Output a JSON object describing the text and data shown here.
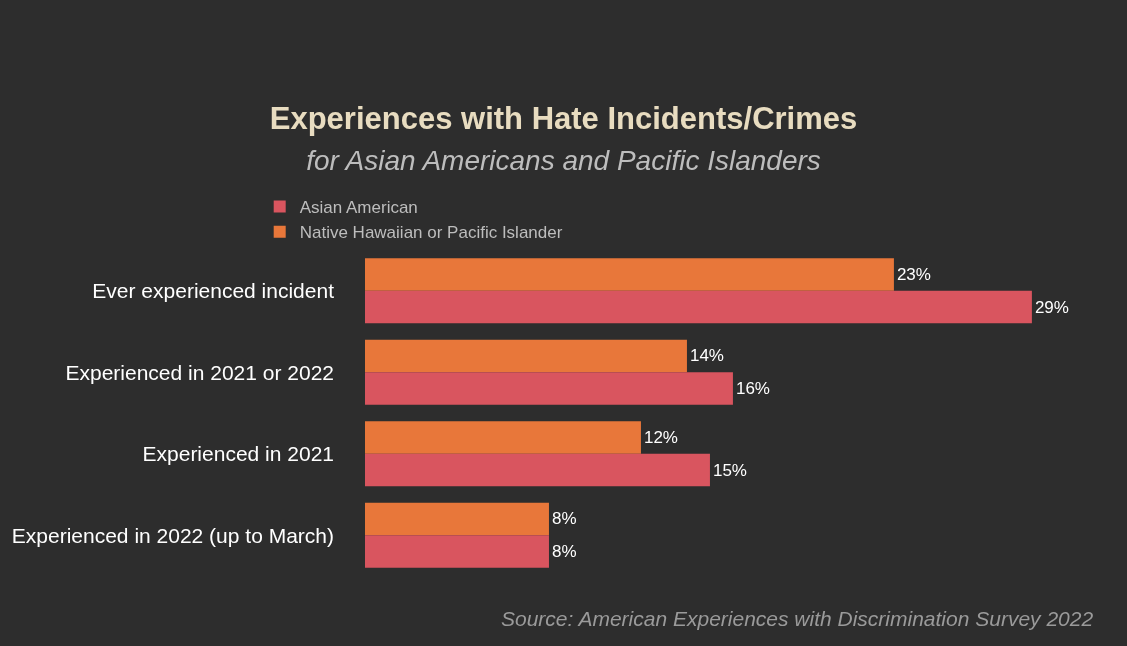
{
  "chart_data": {
    "type": "bar",
    "orientation": "horizontal",
    "title": "Experiences with Hate Incidents/Crimes",
    "subtitle": "for Asian Americans and Pacific Islanders",
    "categories": [
      "Ever experienced incident",
      "Experienced in 2021 or 2022",
      "Experienced in 2021",
      "Experienced in 2022 (up to March)"
    ],
    "series": [
      {
        "name": "Native Hawaiian or Pacific Islander",
        "color": "#e8773a",
        "values": [
          23,
          14,
          12,
          8
        ],
        "value_labels": [
          "23%",
          "14%",
          "12%",
          "8%"
        ]
      },
      {
        "name": "Asian American",
        "color": "#d9555f",
        "values": [
          29,
          16,
          15,
          8
        ],
        "value_labels": [
          "29%",
          "16%",
          "15%",
          "8%"
        ]
      }
    ],
    "legend": "top left",
    "grid": false,
    "tick_labels": "y",
    "annotations": [
      "Source: American Experiences with Discrimination Survey 2022"
    ]
  }
}
